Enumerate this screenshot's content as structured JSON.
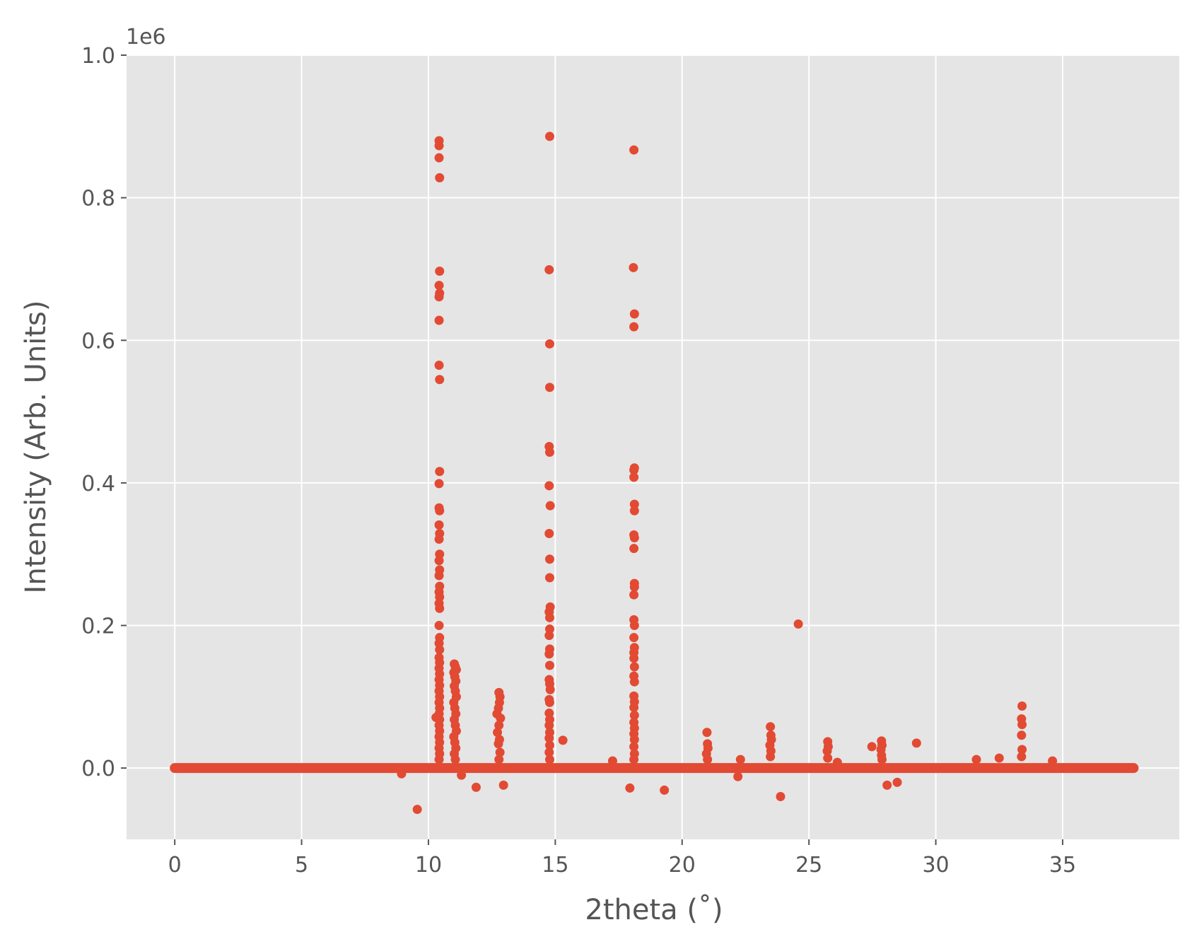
{
  "chart_data": {
    "type": "scatter",
    "title": "",
    "xlabel": "2theta (˚)",
    "ylabel": "Intensity (Arb. Units)",
    "y_offset_text": "1e6",
    "y_scale_factor": 1000000,
    "xlim": [
      -1.9,
      39.6
    ],
    "ylim": [
      -0.1,
      1.0
    ],
    "x_ticks": [
      0,
      5,
      10,
      15,
      20,
      25,
      30,
      35
    ],
    "y_ticks": [
      0.0,
      0.2,
      0.4,
      0.6,
      0.8,
      1.0
    ],
    "y_tick_labels": [
      "0.0",
      "0.2",
      "0.4",
      "0.6",
      "0.8",
      "1.0"
    ],
    "grid": true,
    "style": "ggplot",
    "marker": "circle",
    "colors": {
      "points": "#E24A33",
      "plot_background": "#E5E5E5",
      "grid": "#FFFFFF",
      "text": "#555555"
    },
    "baseline": {
      "x_range": [
        0.0,
        37.8
      ],
      "y_value": 0.0,
      "thickness": 0.012
    },
    "series": [
      {
        "points": [
          [
            10.42,
            0.88
          ],
          [
            10.42,
            0.873
          ],
          [
            10.42,
            0.856
          ],
          [
            10.44,
            0.828
          ],
          [
            10.44,
            0.697
          ],
          [
            10.42,
            0.677
          ],
          [
            10.44,
            0.666
          ],
          [
            10.42,
            0.661
          ],
          [
            10.42,
            0.628
          ],
          [
            10.42,
            0.565
          ],
          [
            10.44,
            0.545
          ],
          [
            10.44,
            0.416
          ],
          [
            10.42,
            0.399
          ],
          [
            10.42,
            0.365
          ],
          [
            10.44,
            0.361
          ],
          [
            10.42,
            0.341
          ],
          [
            10.44,
            0.329
          ],
          [
            10.42,
            0.321
          ],
          [
            10.44,
            0.3
          ],
          [
            10.42,
            0.291
          ],
          [
            10.44,
            0.278
          ],
          [
            10.42,
            0.27
          ],
          [
            10.44,
            0.255
          ],
          [
            10.42,
            0.247
          ],
          [
            10.44,
            0.24
          ],
          [
            10.42,
            0.231
          ],
          [
            10.44,
            0.224
          ],
          [
            10.42,
            0.2
          ],
          [
            10.44,
            0.183
          ],
          [
            10.42,
            0.175
          ],
          [
            10.44,
            0.166
          ],
          [
            10.42,
            0.155
          ],
          [
            10.44,
            0.148
          ],
          [
            10.42,
            0.14
          ],
          [
            10.44,
            0.132
          ],
          [
            10.42,
            0.124
          ],
          [
            10.44,
            0.116
          ],
          [
            10.42,
            0.108
          ],
          [
            10.44,
            0.1
          ],
          [
            10.42,
            0.092
          ],
          [
            10.44,
            0.084
          ],
          [
            10.42,
            0.076
          ],
          [
            10.3,
            0.071
          ],
          [
            10.44,
            0.068
          ],
          [
            10.42,
            0.06
          ],
          [
            10.44,
            0.052
          ],
          [
            10.42,
            0.044
          ],
          [
            10.44,
            0.036
          ],
          [
            10.42,
            0.028
          ],
          [
            10.44,
            0.02
          ],
          [
            10.42,
            0.012
          ],
          [
            11.02,
            0.146
          ],
          [
            11.06,
            0.142
          ],
          [
            11.1,
            0.138
          ],
          [
            11.0,
            0.134
          ],
          [
            11.04,
            0.128
          ],
          [
            11.08,
            0.122
          ],
          [
            11.02,
            0.115
          ],
          [
            11.06,
            0.108
          ],
          [
            11.1,
            0.1
          ],
          [
            11.0,
            0.092
          ],
          [
            11.04,
            0.084
          ],
          [
            11.08,
            0.076
          ],
          [
            11.02,
            0.068
          ],
          [
            11.06,
            0.06
          ],
          [
            11.1,
            0.052
          ],
          [
            11.0,
            0.044
          ],
          [
            11.04,
            0.036
          ],
          [
            11.08,
            0.028
          ],
          [
            11.02,
            0.02
          ],
          [
            11.06,
            0.012
          ],
          [
            12.78,
            0.106
          ],
          [
            12.82,
            0.1
          ],
          [
            12.7,
            0.076
          ],
          [
            12.8,
            0.092
          ],
          [
            12.76,
            0.084
          ],
          [
            12.84,
            0.07
          ],
          [
            12.78,
            0.06
          ],
          [
            12.72,
            0.05
          ],
          [
            12.8,
            0.04
          ],
          [
            12.76,
            0.034
          ],
          [
            12.82,
            0.022
          ],
          [
            12.78,
            0.012
          ],
          [
            14.78,
            0.886
          ],
          [
            14.76,
            0.699
          ],
          [
            14.78,
            0.595
          ],
          [
            14.78,
            0.534
          ],
          [
            14.76,
            0.451
          ],
          [
            14.78,
            0.443
          ],
          [
            14.76,
            0.396
          ],
          [
            14.8,
            0.368
          ],
          [
            14.76,
            0.329
          ],
          [
            14.78,
            0.293
          ],
          [
            14.78,
            0.267
          ],
          [
            14.8,
            0.226
          ],
          [
            14.76,
            0.219
          ],
          [
            14.78,
            0.211
          ],
          [
            14.78,
            0.195
          ],
          [
            14.76,
            0.186
          ],
          [
            14.78,
            0.167
          ],
          [
            14.76,
            0.16
          ],
          [
            14.78,
            0.144
          ],
          [
            14.76,
            0.124
          ],
          [
            14.78,
            0.118
          ],
          [
            14.8,
            0.11
          ],
          [
            14.76,
            0.096
          ],
          [
            14.78,
            0.092
          ],
          [
            14.76,
            0.077
          ],
          [
            14.78,
            0.068
          ],
          [
            14.76,
            0.06
          ],
          [
            14.78,
            0.05
          ],
          [
            14.76,
            0.042
          ],
          [
            14.78,
            0.032
          ],
          [
            14.76,
            0.022
          ],
          [
            14.78,
            0.012
          ],
          [
            18.1,
            0.867
          ],
          [
            18.08,
            0.702
          ],
          [
            18.12,
            0.637
          ],
          [
            18.1,
            0.619
          ],
          [
            18.12,
            0.421
          ],
          [
            18.1,
            0.418
          ],
          [
            18.1,
            0.408
          ],
          [
            18.12,
            0.37
          ],
          [
            18.12,
            0.361
          ],
          [
            18.1,
            0.327
          ],
          [
            18.12,
            0.323
          ],
          [
            18.1,
            0.308
          ],
          [
            18.12,
            0.259
          ],
          [
            18.12,
            0.254
          ],
          [
            18.1,
            0.243
          ],
          [
            18.1,
            0.208
          ],
          [
            18.12,
            0.2
          ],
          [
            18.1,
            0.183
          ],
          [
            18.12,
            0.169
          ],
          [
            18.1,
            0.162
          ],
          [
            18.1,
            0.154
          ],
          [
            18.12,
            0.142
          ],
          [
            18.1,
            0.129
          ],
          [
            18.12,
            0.121
          ],
          [
            18.1,
            0.101
          ],
          [
            18.12,
            0.093
          ],
          [
            18.1,
            0.085
          ],
          [
            18.12,
            0.074
          ],
          [
            18.1,
            0.064
          ],
          [
            18.12,
            0.056
          ],
          [
            18.1,
            0.048
          ],
          [
            18.12,
            0.04
          ],
          [
            18.1,
            0.03
          ],
          [
            18.12,
            0.02
          ],
          [
            18.1,
            0.012
          ],
          [
            20.98,
            0.05
          ],
          [
            21.0,
            0.034
          ],
          [
            21.02,
            0.028
          ],
          [
            20.96,
            0.02
          ],
          [
            21.0,
            0.012
          ],
          [
            23.48,
            0.058
          ],
          [
            23.5,
            0.046
          ],
          [
            23.52,
            0.04
          ],
          [
            23.46,
            0.032
          ],
          [
            23.5,
            0.024
          ],
          [
            23.48,
            0.016
          ],
          [
            24.58,
            0.202
          ],
          [
            25.74,
            0.037
          ],
          [
            25.76,
            0.03
          ],
          [
            25.72,
            0.024
          ],
          [
            25.74,
            0.014
          ],
          [
            27.48,
            0.03
          ],
          [
            27.86,
            0.038
          ],
          [
            27.88,
            0.032
          ],
          [
            27.84,
            0.026
          ],
          [
            27.86,
            0.018
          ],
          [
            27.88,
            0.012
          ],
          [
            29.24,
            0.035
          ],
          [
            33.4,
            0.087
          ],
          [
            33.38,
            0.069
          ],
          [
            33.4,
            0.061
          ],
          [
            33.38,
            0.046
          ],
          [
            33.4,
            0.026
          ],
          [
            33.38,
            0.016
          ],
          [
            15.3,
            0.039
          ],
          [
            17.26,
            0.01
          ],
          [
            22.3,
            0.012
          ],
          [
            26.12,
            0.008
          ],
          [
            31.6,
            0.012
          ],
          [
            32.5,
            0.014
          ],
          [
            34.6,
            0.01
          ],
          [
            9.56,
            -0.058
          ],
          [
            11.88,
            -0.027
          ],
          [
            12.96,
            -0.024
          ],
          [
            17.94,
            -0.028
          ],
          [
            19.3,
            -0.031
          ],
          [
            23.88,
            -0.04
          ],
          [
            28.08,
            -0.024
          ],
          [
            28.48,
            -0.02
          ],
          [
            22.2,
            -0.012
          ],
          [
            11.3,
            -0.01
          ],
          [
            8.94,
            -0.008
          ]
        ]
      }
    ]
  }
}
